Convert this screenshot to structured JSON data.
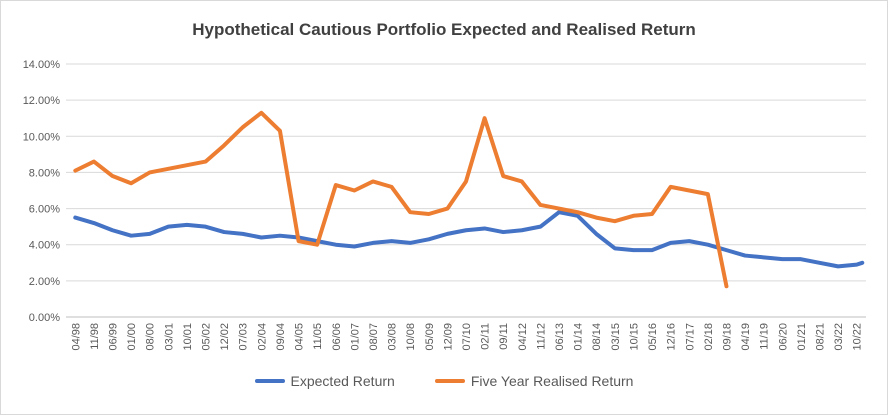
{
  "chart_data": {
    "type": "line",
    "title": "Hypothetical Cautious Portfolio Expected and Realised Return",
    "xlabel": "",
    "ylabel": "",
    "ylim": [
      0,
      14
    ],
    "yticks": [
      "0.00%",
      "2.00%",
      "4.00%",
      "6.00%",
      "8.00%",
      "10.00%",
      "12.00%",
      "14.00%"
    ],
    "xticks": [
      "04/98",
      "11/98",
      "06/99",
      "01/00",
      "08/00",
      "03/01",
      "10/01",
      "05/02",
      "12/02",
      "07/03",
      "02/04",
      "09/04",
      "04/05",
      "11/05",
      "06/06",
      "01/07",
      "08/07",
      "03/08",
      "10/08",
      "05/09",
      "12/09",
      "07/10",
      "02/11",
      "09/11",
      "04/12",
      "11/12",
      "06/13",
      "01/14",
      "08/14",
      "03/15",
      "10/15",
      "05/16",
      "12/16",
      "07/17",
      "02/18",
      "09/18",
      "04/19",
      "11/19",
      "06/20",
      "01/21",
      "08/21",
      "03/22",
      "10/22"
    ],
    "grid": true,
    "legend_position": "bottom",
    "series": [
      {
        "name": "Expected Return",
        "color": "#4472c4",
        "x": [
          0,
          1,
          2,
          3,
          4,
          5,
          6,
          7,
          8,
          9,
          10,
          11,
          12,
          13,
          14,
          15,
          16,
          17,
          18,
          19,
          20,
          21,
          22,
          23,
          24,
          25,
          26,
          27,
          28,
          29,
          30,
          31,
          32,
          33,
          34,
          35,
          36,
          37,
          38,
          39,
          40,
          41,
          42,
          42.3
        ],
        "values": [
          5.5,
          5.2,
          4.8,
          4.5,
          4.6,
          5.0,
          5.1,
          5.0,
          4.7,
          4.6,
          4.4,
          4.5,
          4.4,
          4.2,
          4.0,
          3.9,
          4.1,
          4.2,
          4.1,
          4.3,
          4.6,
          4.8,
          4.9,
          4.7,
          4.8,
          5.0,
          5.8,
          5.6,
          4.6,
          3.8,
          3.7,
          3.7,
          4.1,
          4.2,
          4.0,
          3.7,
          3.4,
          3.3,
          3.2,
          3.2,
          3.0,
          2.8,
          2.9,
          3.0
        ]
      },
      {
        "name": "Five Year Realised Return",
        "color": "#ed7d31",
        "x": [
          0,
          1,
          2,
          3,
          4,
          5,
          6,
          7,
          8,
          9,
          10,
          11,
          12,
          13,
          14,
          15,
          16,
          17,
          18,
          19,
          20,
          21,
          22,
          23,
          24,
          25,
          26,
          27,
          28,
          29,
          30,
          31,
          32,
          33,
          34,
          35
        ],
        "values": [
          8.1,
          8.6,
          7.8,
          7.4,
          8.0,
          8.2,
          8.4,
          8.6,
          9.5,
          10.5,
          11.3,
          10.3,
          4.2,
          4.0,
          7.3,
          7.0,
          7.5,
          7.2,
          5.8,
          5.7,
          6.0,
          7.5,
          11.0,
          7.8,
          7.5,
          6.2,
          6.0,
          5.8,
          5.5,
          5.3,
          5.6,
          5.7,
          7.2,
          7.0,
          6.8,
          1.7
        ]
      }
    ]
  },
  "legend": {
    "expected": "Expected Return",
    "realised": "Five Year Realised Return"
  }
}
